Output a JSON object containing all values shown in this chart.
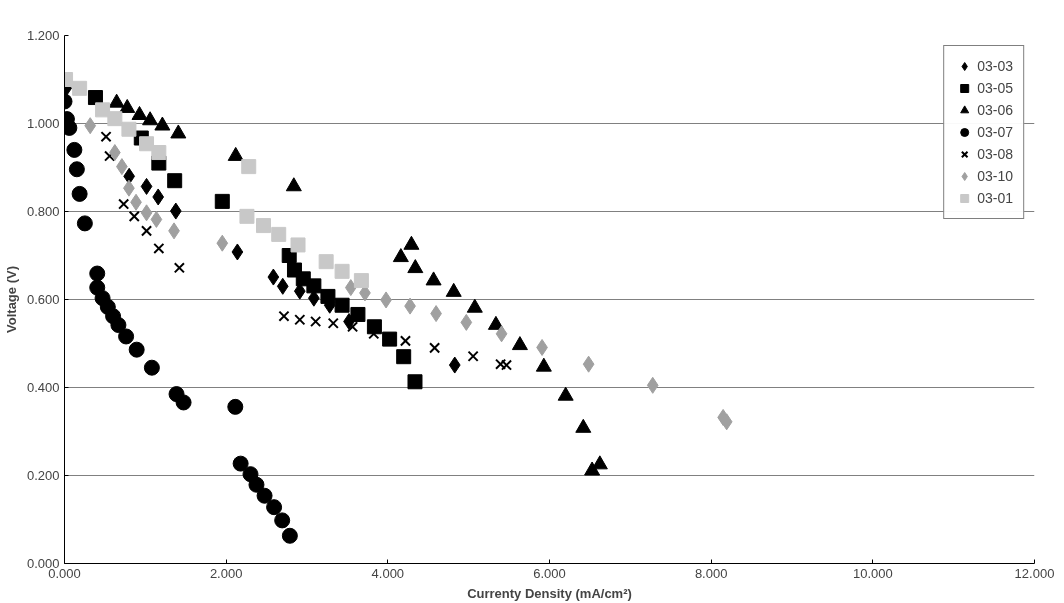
{
  "chart_data": {
    "type": "scatter",
    "xlabel": "Currenty Density (mA/cm²)",
    "ylabel": "Voltage (V)",
    "xlim": [
      0,
      12
    ],
    "ylim": [
      0,
      1.2
    ],
    "xticks": [
      {
        "value": 0,
        "label": "0.000"
      },
      {
        "value": 2,
        "label": "2.000"
      },
      {
        "value": 4,
        "label": "4.000"
      },
      {
        "value": 6,
        "label": "6.000"
      },
      {
        "value": 8,
        "label": "8.000"
      },
      {
        "value": 10,
        "label": "10.000"
      },
      {
        "value": 12,
        "label": "12.000"
      }
    ],
    "yticks": [
      {
        "value": 0,
        "label": "0.000"
      },
      {
        "value": 0.2,
        "label": "0.200"
      },
      {
        "value": 0.4,
        "label": "0.400"
      },
      {
        "value": 0.6,
        "label": "0.600"
      },
      {
        "value": 0.8,
        "label": "0.800"
      },
      {
        "value": 1.0,
        "label": "1.000"
      },
      {
        "value": 1.2,
        "label": "1.200"
      }
    ],
    "grid": "y",
    "legend": "top right",
    "series": [
      {
        "name": "03-03",
        "color": "#000000",
        "marker": "diamond",
        "x": [
          0.02,
          0.8,
          1.015,
          1.159,
          1.377,
          2.139,
          2.584,
          2.7,
          2.911,
          3.085,
          3.281,
          3.52,
          4.828
        ],
        "values": [
          1.08,
          0.88,
          0.857,
          0.833,
          0.801,
          0.708,
          0.651,
          0.63,
          0.619,
          0.603,
          0.587,
          0.55,
          0.451
        ]
      },
      {
        "name": "03-05",
        "color": "#000000",
        "marker": "square",
        "x": [
          0.383,
          0.95,
          1.167,
          1.363,
          1.952,
          2.78,
          2.845,
          2.954,
          3.085,
          3.259,
          3.434,
          3.63,
          3.834,
          4.022,
          4.196,
          4.336
        ],
        "values": [
          1.059,
          0.967,
          0.91,
          0.87,
          0.823,
          0.7,
          0.667,
          0.647,
          0.631,
          0.607,
          0.587,
          0.566,
          0.538,
          0.51,
          0.47,
          0.413
        ]
      },
      {
        "name": "03-06",
        "color": "#000000",
        "marker": "triangle",
        "x": [
          0.645,
          0.776,
          0.928,
          1.059,
          1.211,
          1.408,
          2.118,
          2.837,
          4.161,
          4.292,
          4.34,
          4.566,
          4.815,
          5.076,
          5.337,
          5.634,
          5.93,
          6.2,
          6.418,
          6.527,
          6.623
        ],
        "values": [
          1.047,
          1.035,
          1.019,
          1.007,
          0.995,
          0.977,
          0.926,
          0.857,
          0.696,
          0.724,
          0.671,
          0.643,
          0.617,
          0.581,
          0.542,
          0.496,
          0.447,
          0.381,
          0.308,
          0.211,
          0.225
        ]
      },
      {
        "name": "03-07",
        "color": "#000000",
        "marker": "circle",
        "x": [
          0,
          0.03,
          0.06,
          0.122,
          0.153,
          0.187,
          0.252,
          0.405,
          0.405,
          0.471,
          0.536,
          0.601,
          0.667,
          0.762,
          0.893,
          1.081,
          1.386,
          1.473,
          2.113,
          2.179,
          2.301,
          2.375,
          2.475,
          2.593,
          2.693,
          2.788
        ],
        "values": [
          1.05,
          1.01,
          0.99,
          0.94,
          0.896,
          0.84,
          0.773,
          0.659,
          0.627,
          0.603,
          0.583,
          0.562,
          0.542,
          0.516,
          0.486,
          0.445,
          0.385,
          0.366,
          0.356,
          0.227,
          0.203,
          0.179,
          0.154,
          0.128,
          0.098,
          0.063
        ]
      },
      {
        "name": "03-08",
        "color": "#000000",
        "marker": "cross",
        "x": [
          0.514,
          0.558,
          0.732,
          0.863,
          1.015,
          1.167,
          1.421,
          2.715,
          2.911,
          3.107,
          3.325,
          3.564,
          3.826,
          4.218,
          4.579,
          5.055,
          5.395,
          5.468
        ],
        "values": [
          0.97,
          0.926,
          0.817,
          0.789,
          0.756,
          0.716,
          0.672,
          0.562,
          0.554,
          0.55,
          0.546,
          0.538,
          0.522,
          0.506,
          0.49,
          0.471,
          0.453,
          0.451
        ]
      },
      {
        "name": "03-10",
        "color": "#a0a0a0",
        "marker": "diamond",
        "x": [
          0.318,
          0.623,
          0.71,
          0.797,
          0.885,
          1.015,
          1.137,
          1.355,
          1.952,
          3.542,
          3.717,
          3.978,
          4.275,
          4.597,
          4.971,
          5.407,
          5.908,
          6.484,
          7.277,
          8.148,
          8.192
        ],
        "values": [
          0.995,
          0.934,
          0.902,
          0.853,
          0.821,
          0.797,
          0.782,
          0.756,
          0.728,
          0.627,
          0.615,
          0.599,
          0.585,
          0.568,
          0.548,
          0.522,
          0.491,
          0.453,
          0.405,
          0.332,
          0.322
        ]
      },
      {
        "name": "03-01",
        "color": "#c8c8c8",
        "marker": "square",
        "x": [
          0.013,
          0.187,
          0.471,
          0.623,
          0.797,
          1.015,
          1.167,
          2.279,
          2.257,
          2.462,
          2.65,
          2.889,
          3.237,
          3.434,
          3.673
        ],
        "values": [
          1.1,
          1.08,
          1.031,
          1.011,
          0.987,
          0.954,
          0.934,
          0.902,
          0.789,
          0.768,
          0.748,
          0.724,
          0.686,
          0.664,
          0.643
        ]
      }
    ]
  }
}
